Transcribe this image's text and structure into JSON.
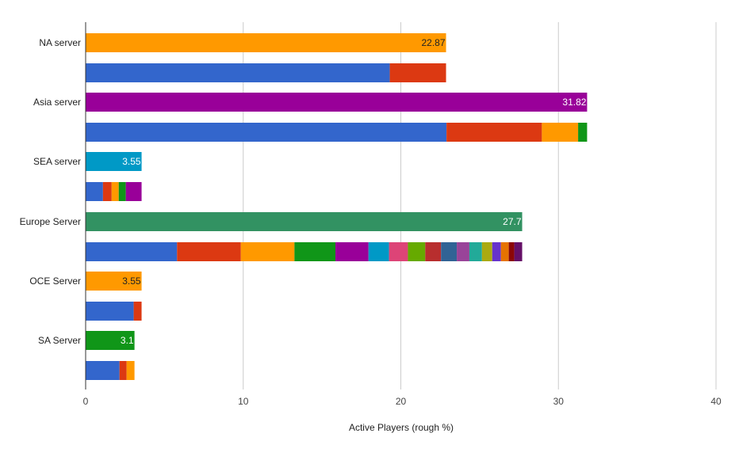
{
  "chart_data": {
    "type": "bar",
    "orientation": "horizontal",
    "stacked": true,
    "title": "",
    "xlabel": "Active Players (rough %)",
    "ylabel": "",
    "xlim": [
      0,
      40
    ],
    "x_ticks": [
      0,
      10,
      20,
      30,
      40
    ],
    "grid": true,
    "legend": "none",
    "groups": [
      {
        "category": "NA server",
        "total": 22.87,
        "total_label": "22.87",
        "total_color": "#ff9900",
        "label_color": "#222222",
        "segments": [
          {
            "value": 19.3,
            "color": "#3366cc"
          },
          {
            "value": 3.57,
            "color": "#dc3912"
          }
        ]
      },
      {
        "category": "Asia server",
        "total": 31.82,
        "total_label": "31.82",
        "total_color": "#990099",
        "label_color": "#ffffff",
        "segments": [
          {
            "value": 22.9,
            "color": "#3366cc"
          },
          {
            "value": 6.05,
            "color": "#dc3912"
          },
          {
            "value": 2.3,
            "color": "#ff9900"
          },
          {
            "value": 0.57,
            "color": "#109618"
          }
        ]
      },
      {
        "category": "SEA server",
        "total": 3.55,
        "total_label": "3.55",
        "total_color": "#0099c6",
        "label_color": "#ffffff",
        "segments": [
          {
            "value": 1.1,
            "color": "#3366cc"
          },
          {
            "value": 0.55,
            "color": "#dc3912"
          },
          {
            "value": 0.45,
            "color": "#ff9900"
          },
          {
            "value": 0.45,
            "color": "#109618"
          },
          {
            "value": 1.0,
            "color": "#990099"
          }
        ]
      },
      {
        "category": "Europe Server",
        "total": 27.7,
        "total_label": "27.7",
        "total_color": "#329262",
        "label_color": "#ffffff",
        "segments": [
          {
            "value": 5.8,
            "color": "#3366cc"
          },
          {
            "value": 4.05,
            "color": "#dc3912"
          },
          {
            "value": 3.4,
            "color": "#ff9900"
          },
          {
            "value": 2.6,
            "color": "#109618"
          },
          {
            "value": 2.1,
            "color": "#990099"
          },
          {
            "value": 1.3,
            "color": "#0099c6"
          },
          {
            "value": 1.2,
            "color": "#dd4477"
          },
          {
            "value": 1.1,
            "color": "#66aa00"
          },
          {
            "value": 1.0,
            "color": "#b82e2e"
          },
          {
            "value": 1.0,
            "color": "#316395"
          },
          {
            "value": 0.8,
            "color": "#994499"
          },
          {
            "value": 0.8,
            "color": "#22aa99"
          },
          {
            "value": 0.65,
            "color": "#aaaa11"
          },
          {
            "value": 0.55,
            "color": "#6633cc"
          },
          {
            "value": 0.5,
            "color": "#e67300"
          },
          {
            "value": 0.35,
            "color": "#8b0707"
          },
          {
            "value": 0.5,
            "color": "#651067"
          }
        ]
      },
      {
        "category": "OCE Server",
        "total": 3.55,
        "total_label": "3.55",
        "total_color": "#ff9900",
        "label_color": "#222222",
        "segments": [
          {
            "value": 3.05,
            "color": "#3366cc"
          },
          {
            "value": 0.5,
            "color": "#dc3912"
          }
        ]
      },
      {
        "category": "SA Server",
        "total": 3.1,
        "total_label": "3.1",
        "total_color": "#109618",
        "label_color": "#ffffff",
        "segments": [
          {
            "value": 2.15,
            "color": "#3366cc"
          },
          {
            "value": 0.45,
            "color": "#dc3912"
          },
          {
            "value": 0.5,
            "color": "#ff9900"
          }
        ]
      }
    ]
  }
}
